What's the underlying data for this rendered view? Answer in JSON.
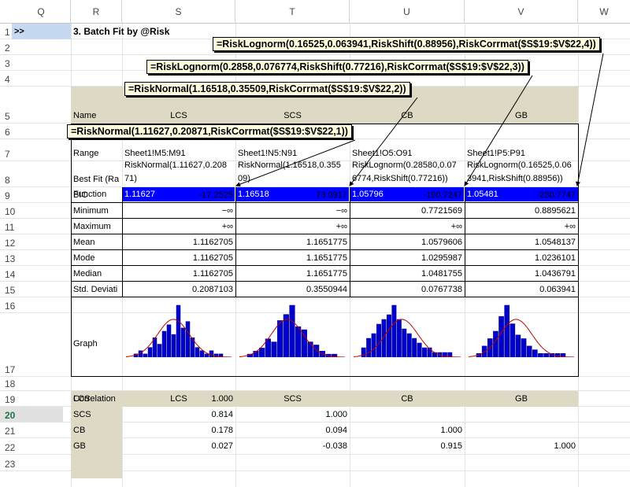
{
  "columns": [
    "Q",
    "R",
    "S",
    "T",
    "U",
    "V",
    "W"
  ],
  "rows": [
    "1",
    "2",
    "3",
    "4",
    "5",
    "6",
    "7",
    "8",
    "9",
    "10",
    "11",
    "12",
    "13",
    "14",
    "15",
    "16",
    "17",
    "18",
    "19",
    "20",
    "21",
    "22",
    "23"
  ],
  "selected_row": "20",
  "marker": ">>",
  "title": "3. Batch Fit by @Risk",
  "labels": {
    "name": "Name",
    "range": "Range",
    "best_fit": "Best Fit (Ra",
    "function": "Function",
    "bic": "BIC",
    "minimum": "Minimum",
    "maximum": "Maximum",
    "mean": "Mean",
    "mode": "Mode",
    "median": "Median",
    "std": "Std. Deviati",
    "graph": "Graph",
    "correlation": "Correlation"
  },
  "names": [
    "LCS",
    "SCS",
    "CB",
    "GB"
  ],
  "ranges": [
    "Sheet1!M5:M91",
    "Sheet1!N5:N91",
    "Sheet1!O5:O91",
    "Sheet1!P5:P91"
  ],
  "bestfit_line1": [
    "RiskNormal(1.11627,0.208",
    "RiskNormal(1.16518,0.355",
    "RiskLognorm(0.28580,0.07",
    "RiskLognorm(0.16525,0.06"
  ],
  "bestfit_line2": [
    "71)",
    "09)",
    "6774,RiskShift(0.77216))",
    "3941,RiskShift(0.88956))"
  ],
  "function_values": [
    "1.11627",
    "1.16518",
    "1.05796",
    "1.05481"
  ],
  "stats": {
    "bic": [
      "-17.2525",
      "73.0917",
      "-190.7247",
      "-230.7747"
    ],
    "minimum": [
      "−∞",
      "−∞",
      "0.7721569",
      "0.8895621"
    ],
    "maximum": [
      "+∞",
      "+∞",
      "+∞",
      "+∞"
    ],
    "mean": [
      "1.1162705",
      "1.1651775",
      "1.0579606",
      "1.0548137"
    ],
    "mode": [
      "1.1162705",
      "1.1651775",
      "1.0295987",
      "1.0236101"
    ],
    "median": [
      "1.1162705",
      "1.1651775",
      "1.0481755",
      "1.0436791"
    ],
    "std": [
      "0.2087103",
      "0.3550944",
      "0.0767738",
      "0.063941"
    ]
  },
  "corr_rows": [
    {
      "name": "LCS",
      "values": [
        "1.000",
        "",
        "",
        ""
      ]
    },
    {
      "name": "SCS",
      "values": [
        "0.814",
        "1.000",
        "",
        ""
      ]
    },
    {
      "name": "CB",
      "values": [
        "0.178",
        "0.094",
        "1.000",
        ""
      ]
    },
    {
      "name": "GB",
      "values": [
        "0.027",
        "-0.038",
        "0.915",
        "1.000"
      ]
    }
  ],
  "callouts": {
    "gb": "=RiskLognorm(0.16525,0.063941,RiskShift(0.88956),RiskCorrmat($S$19:$V$22,4))",
    "cb": "=RiskLognorm(0.2858,0.076774,RiskShift(0.77216),RiskCorrmat($S$19:$V$22,3))",
    "scs": "=RiskNormal(1.16518,0.35509,RiskCorrmat($S$19:$V$22,2))",
    "lcs": "=RiskNormal(1.11627,0.20871,RiskCorrmat($S$19:$V$22,1))"
  },
  "colors": {
    "fill_tan": "#ddd9c4",
    "highlight": "#0000ff",
    "callout": "#ffffe0",
    "curve": "#c00000",
    "bars": "#0000cc"
  }
}
